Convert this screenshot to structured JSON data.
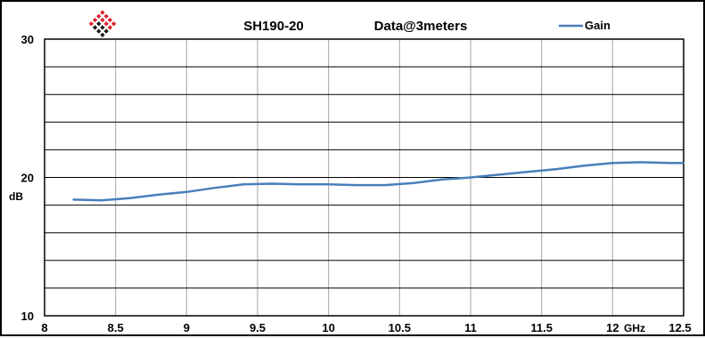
{
  "chart_data": {
    "type": "line",
    "title": "SH190-20",
    "subtitle": "Data@3meters",
    "xlabel": "GHz",
    "ylabel": "dB",
    "xlim": [
      8,
      12.5
    ],
    "ylim": [
      10,
      30
    ],
    "x_ticks": [
      "8",
      "8.5",
      "9",
      "9.5",
      "10",
      "10.5",
      "11",
      "11.5",
      "12",
      "12.5"
    ],
    "y_ticks": [
      "10",
      "20",
      "30"
    ],
    "grid": true,
    "legend_position": "top-right",
    "series": [
      {
        "name": "Gain",
        "color": "#4a7ebb",
        "x": [
          8.2,
          8.4,
          8.6,
          8.8,
          9.0,
          9.2,
          9.4,
          9.6,
          9.8,
          10.0,
          10.2,
          10.4,
          10.6,
          10.8,
          11.0,
          11.2,
          11.4,
          11.6,
          11.8,
          12.0,
          12.2,
          12.4,
          12.5
        ],
        "y": [
          18.4,
          18.35,
          18.5,
          18.75,
          18.95,
          19.25,
          19.5,
          19.55,
          19.5,
          19.5,
          19.45,
          19.45,
          19.6,
          19.85,
          20.0,
          20.2,
          20.4,
          20.6,
          20.85,
          21.05,
          21.1,
          21.05,
          21.05
        ]
      }
    ]
  },
  "logo": {
    "name": "diamond-logo-icon",
    "colors": [
      "#d9262c",
      "#1a1a1a"
    ]
  }
}
